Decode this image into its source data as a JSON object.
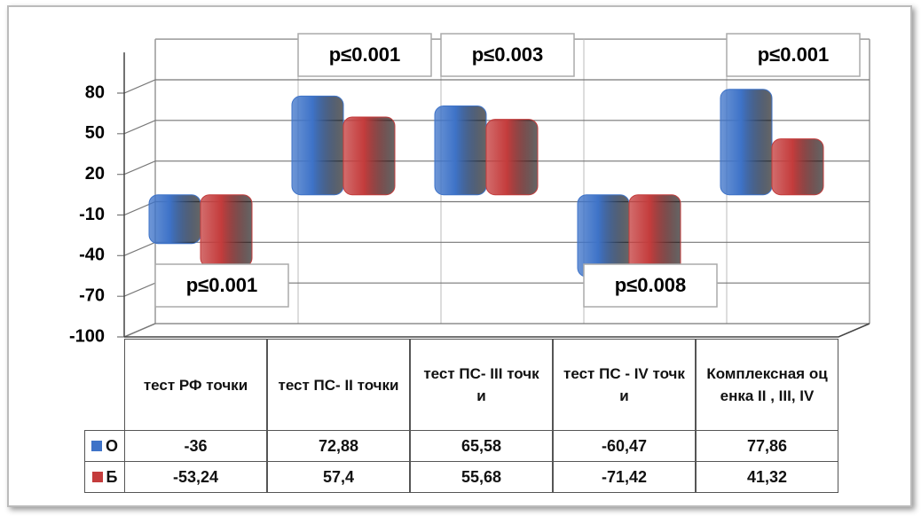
{
  "chart_data": {
    "type": "bar",
    "categories": [
      "тест РФ точки",
      "тест ПС-  II точки",
      "тест ПС- III точки",
      "тест ПС - IV точки",
      "Комплексная оценка  II , III, IV"
    ],
    "series": [
      {
        "name": "О",
        "color": "#3e73c8",
        "values": [
          -36,
          72.88,
          65.58,
          -60.47,
          77.86
        ],
        "value_labels": [
          "-36",
          "72,88",
          "65,58",
          "-60,47",
          "77,86"
        ]
      },
      {
        "name": "Б",
        "color": "#c43c3c",
        "values": [
          -53.24,
          57.4,
          55.68,
          -71.42,
          41.32
        ],
        "value_labels": [
          "-53,24",
          "57,4",
          "55,68",
          "-71,42",
          "41,32"
        ]
      }
    ],
    "annotations": [
      "p≤0.001",
      "p≤0.001",
      "p≤0.003",
      "p≤0.008",
      "p≤0.001"
    ],
    "ylim": [
      -100,
      110
    ],
    "yticks": [
      80,
      50,
      20,
      -10,
      -40,
      -70,
      -100
    ],
    "grid": true
  }
}
